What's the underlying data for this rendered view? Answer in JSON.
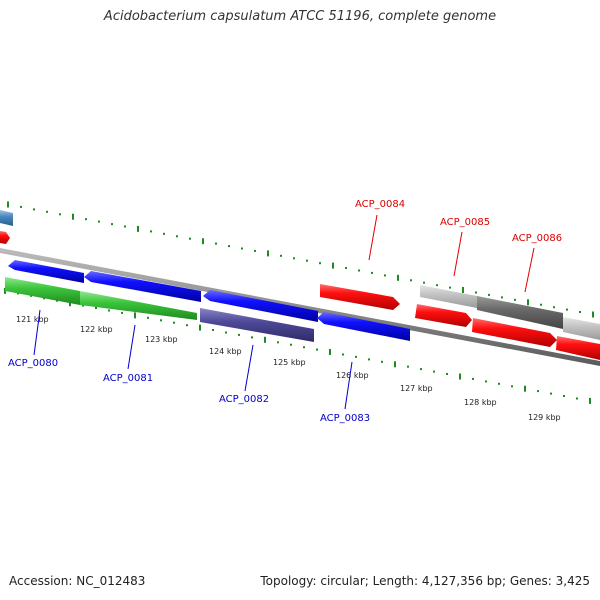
{
  "title": "Acidobacterium capsulatum ATCC 51196, complete genome",
  "footer": {
    "accession": "Accession: NC_012483",
    "summary": "Topology: circular; Length: 4,127,356 bp; Genes: 3,425"
  },
  "colors": {
    "ruler": "#1f8a1f",
    "backbone": "#8c8c8c",
    "label_red": "#dd0000",
    "label_blue": "#0000cc",
    "tick_label": "#222222"
  },
  "ticks": [
    {
      "label": "121 kbp"
    },
    {
      "label": "122 kbp"
    },
    {
      "label": "123 kbp"
    },
    {
      "label": "124 kbp"
    },
    {
      "label": "125 kbp"
    },
    {
      "label": "126 kbp"
    },
    {
      "label": "127 kbp"
    },
    {
      "label": "128 kbp"
    },
    {
      "label": "129 kbp"
    }
  ],
  "gene_labels": [
    {
      "name": "ACP_0080",
      "color": "#0000cc"
    },
    {
      "name": "ACP_0081",
      "color": "#0000cc"
    },
    {
      "name": "ACP_0082",
      "color": "#0000cc"
    },
    {
      "name": "ACP_0083",
      "color": "#0000cc"
    },
    {
      "name": "ACP_0084",
      "color": "#dd0000"
    },
    {
      "name": "ACP_0085",
      "color": "#dd0000"
    },
    {
      "name": "ACP_0086",
      "color": "#dd0000"
    }
  ]
}
